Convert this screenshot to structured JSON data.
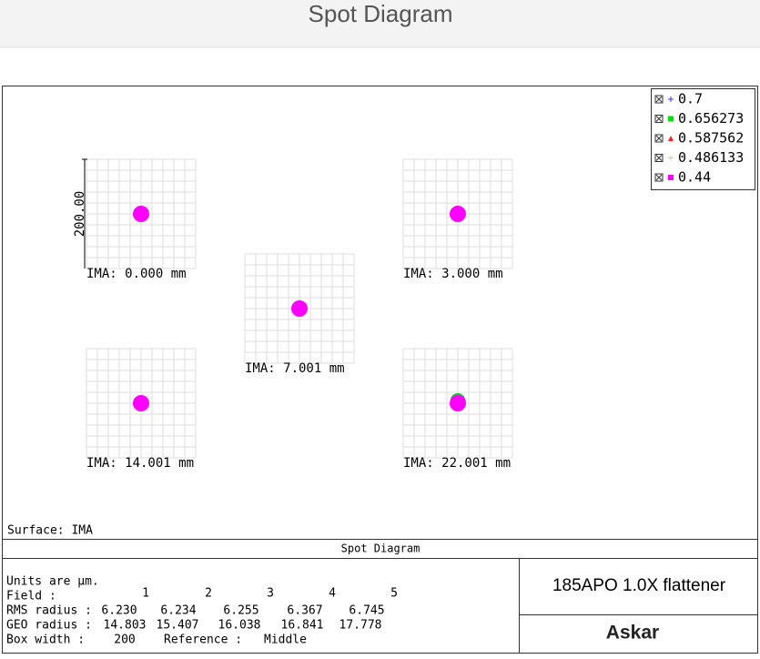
{
  "header": {
    "title": "Spot Diagram"
  },
  "legend": [
    {
      "label": "0.7",
      "color": "#3030ff",
      "marker": "plus"
    },
    {
      "label": "0.656273",
      "color": "#00e000",
      "marker": "square"
    },
    {
      "label": "0.587562",
      "color": "#ff2020",
      "marker": "triangle"
    },
    {
      "label": "0.486133",
      "color": "#e0d080",
      "marker": "plus"
    },
    {
      "label": "0.44",
      "color": "#ff00ff",
      "marker": "square"
    }
  ],
  "scale_label": "200.00",
  "spots": [
    {
      "label": "IMA: 0.000 mm"
    },
    {
      "label": "IMA: 3.000 mm"
    },
    {
      "label": "IMA: 7.001 mm"
    },
    {
      "label": "IMA: 14.001 mm"
    },
    {
      "label": "IMA: 22.001 mm"
    }
  ],
  "surface": "Surface: IMA",
  "footer": {
    "title": "Spot Diagram",
    "units": "Units are µm.",
    "rows": [
      {
        "label": "Field :",
        "values": [
          "1",
          "2",
          "3",
          "4",
          "5"
        ]
      },
      {
        "label": "RMS radius :",
        "values": [
          "6.230",
          "6.234",
          "6.255",
          "6.367",
          "6.745"
        ]
      },
      {
        "label": "GEO radius :",
        "values": [
          "14.803",
          "15.407",
          "16.038",
          "16.841",
          "17.778"
        ]
      }
    ],
    "box_width": {
      "label": "Box width :",
      "value": "200"
    },
    "reference": {
      "label": "Reference :",
      "value": "Middle"
    },
    "lens": "185APO 1.0X flattener",
    "brand": "Askar"
  }
}
